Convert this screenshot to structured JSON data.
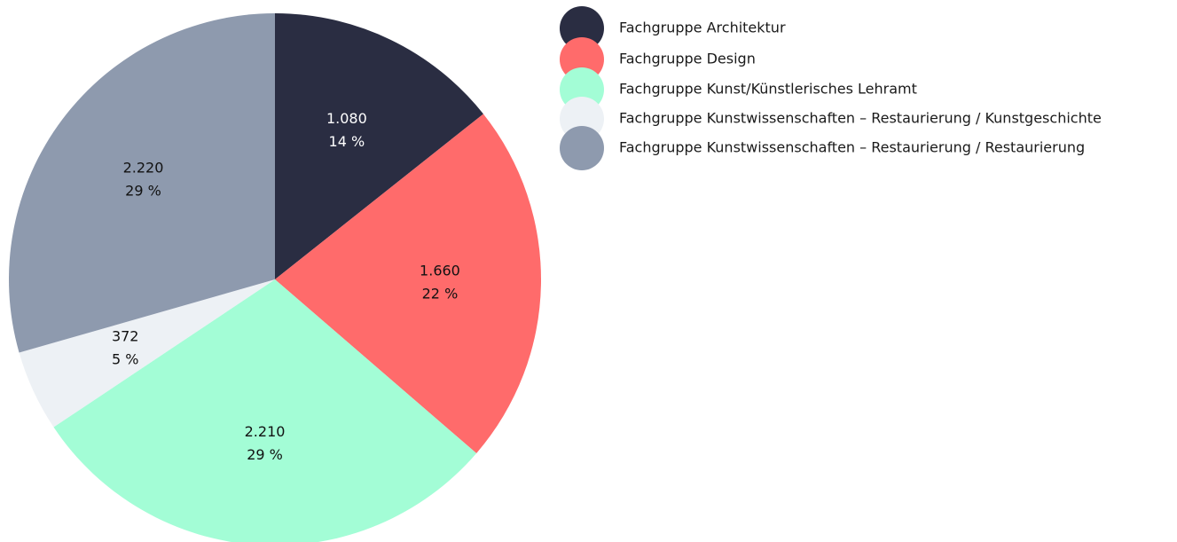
{
  "chart_data": {
    "type": "pie",
    "categories": [
      "Fachgruppe Architektur",
      "Fachgruppe Design",
      "Fachgruppe Kunst/Künstlerisches Lehramt",
      "Fachgruppe Kunstwissenschaften – Restaurierung / Kunstgeschichte",
      "Fachgruppe Kunstwissenschaften – Restaurierung / Restaurierung"
    ],
    "values": [
      1080,
      1660,
      2210,
      372,
      2220
    ],
    "value_labels": [
      "1.080",
      "1.660",
      "2.210",
      "372",
      "2.220"
    ],
    "percentages": [
      14,
      22,
      29,
      5,
      29
    ],
    "percentage_labels": [
      "14 %",
      "22 %",
      "29 %",
      "5 %",
      "29 %"
    ],
    "colors": [
      "#2a2d42",
      "#ff6b6b",
      "#a3fdd6",
      "#edf1f5",
      "#8e9aae"
    ],
    "legend": "top-right"
  }
}
